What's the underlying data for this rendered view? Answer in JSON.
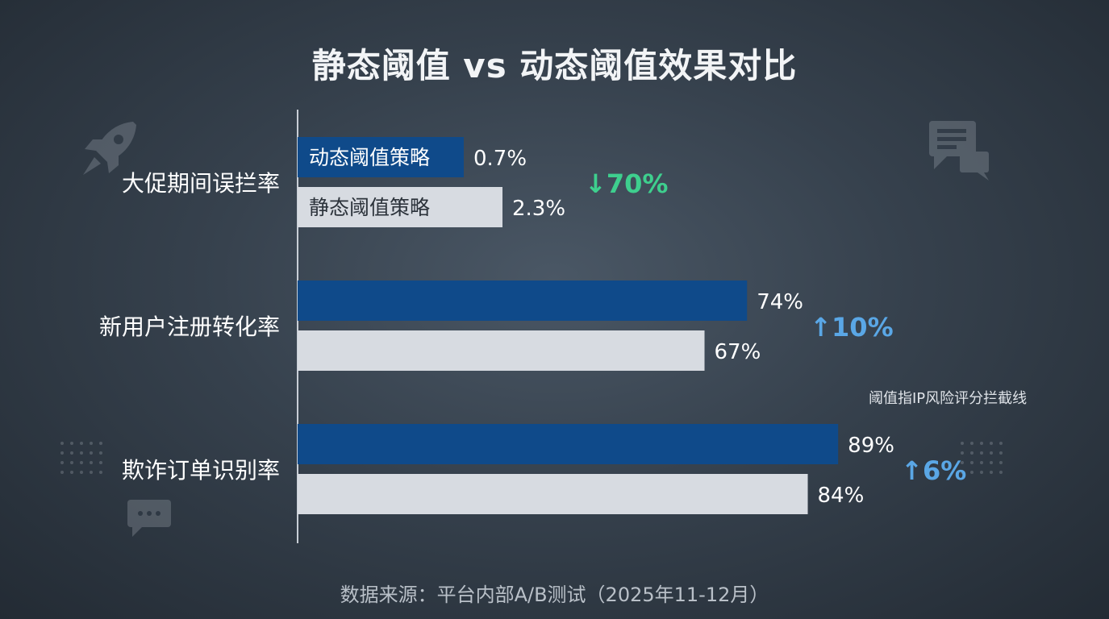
{
  "chart_data": {
    "type": "bar",
    "orientation": "horizontal",
    "title": "静态阈值 vs 动态阈值效果对比",
    "categories": [
      "大促期间误拦率",
      "新用户注册转化率",
      "欺诈订单识别率"
    ],
    "series": [
      {
        "name": "动态阈值策略",
        "values": [
          0.7,
          74,
          89
        ],
        "labels": [
          "0.7%",
          "74%",
          "89%"
        ],
        "color": "#0f4a8a"
      },
      {
        "name": "静态阈值策略",
        "values": [
          2.3,
          67,
          84
        ],
        "labels": [
          "2.3%",
          "67%",
          "84%"
        ],
        "color": "#d7dbe1"
      }
    ],
    "changes": [
      {
        "text": "↓70%",
        "color": "#3ecf8e"
      },
      {
        "text": "↑10%",
        "color": "#5aa7e6"
      },
      {
        "text": "↑6%",
        "color": "#5aa7e6"
      }
    ],
    "xlim": [
      0,
      100
    ],
    "grid": false,
    "legend": "inside-bars",
    "note": "阈值指IP风险评分拦截线",
    "source": "数据来源：平台内部A/B测试（2025年11-12月）"
  }
}
